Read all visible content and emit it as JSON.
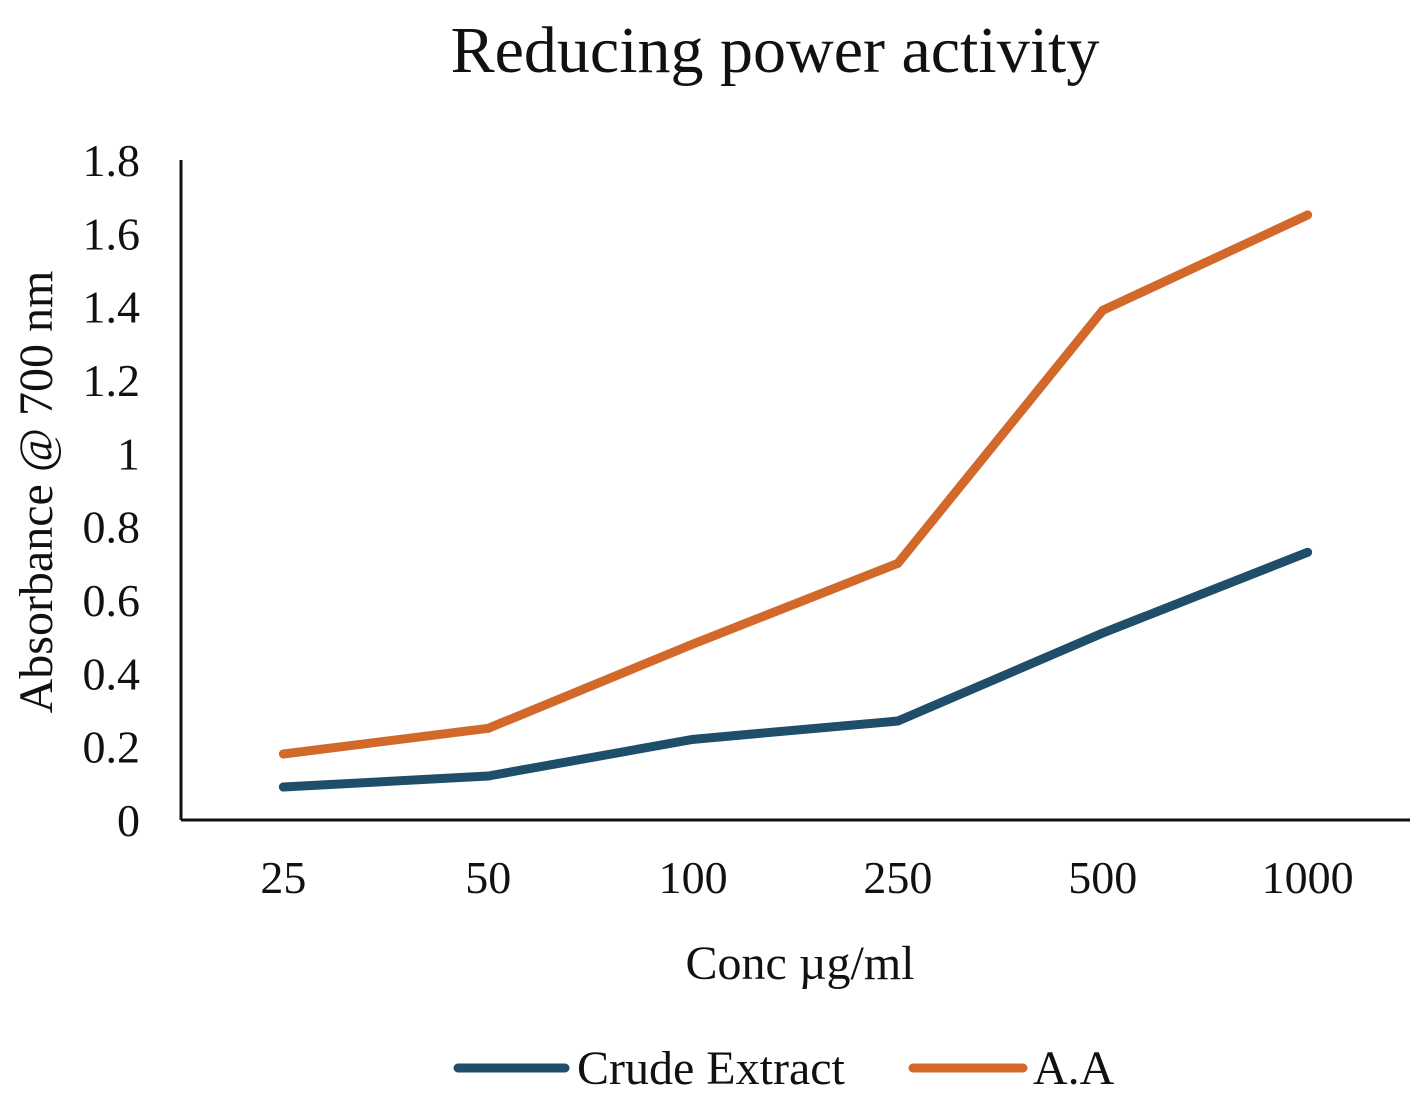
{
  "chart_data": {
    "type": "line",
    "title": "Reducing power activity",
    "xlabel": "Conc µg/ml",
    "ylabel": "Absorbance @ 700 nm",
    "categories": [
      "25",
      "50",
      "100",
      "250",
      "500",
      "1000"
    ],
    "ylim": [
      0,
      1.8
    ],
    "yticks": [
      "0",
      "0.2",
      "0.4",
      "0.6",
      "0.8",
      "1",
      "1.2",
      "1.4",
      "1.6",
      "1.8"
    ],
    "grid": false,
    "legend_position": "bottom",
    "series": [
      {
        "name": "Crude Extract",
        "color": "#1f4e6b",
        "values": [
          0.09,
          0.12,
          0.22,
          0.27,
          0.51,
          0.73
        ]
      },
      {
        "name": "A.A",
        "color": "#d2692b",
        "values": [
          0.18,
          0.25,
          0.48,
          0.7,
          1.39,
          1.65
        ]
      }
    ]
  }
}
